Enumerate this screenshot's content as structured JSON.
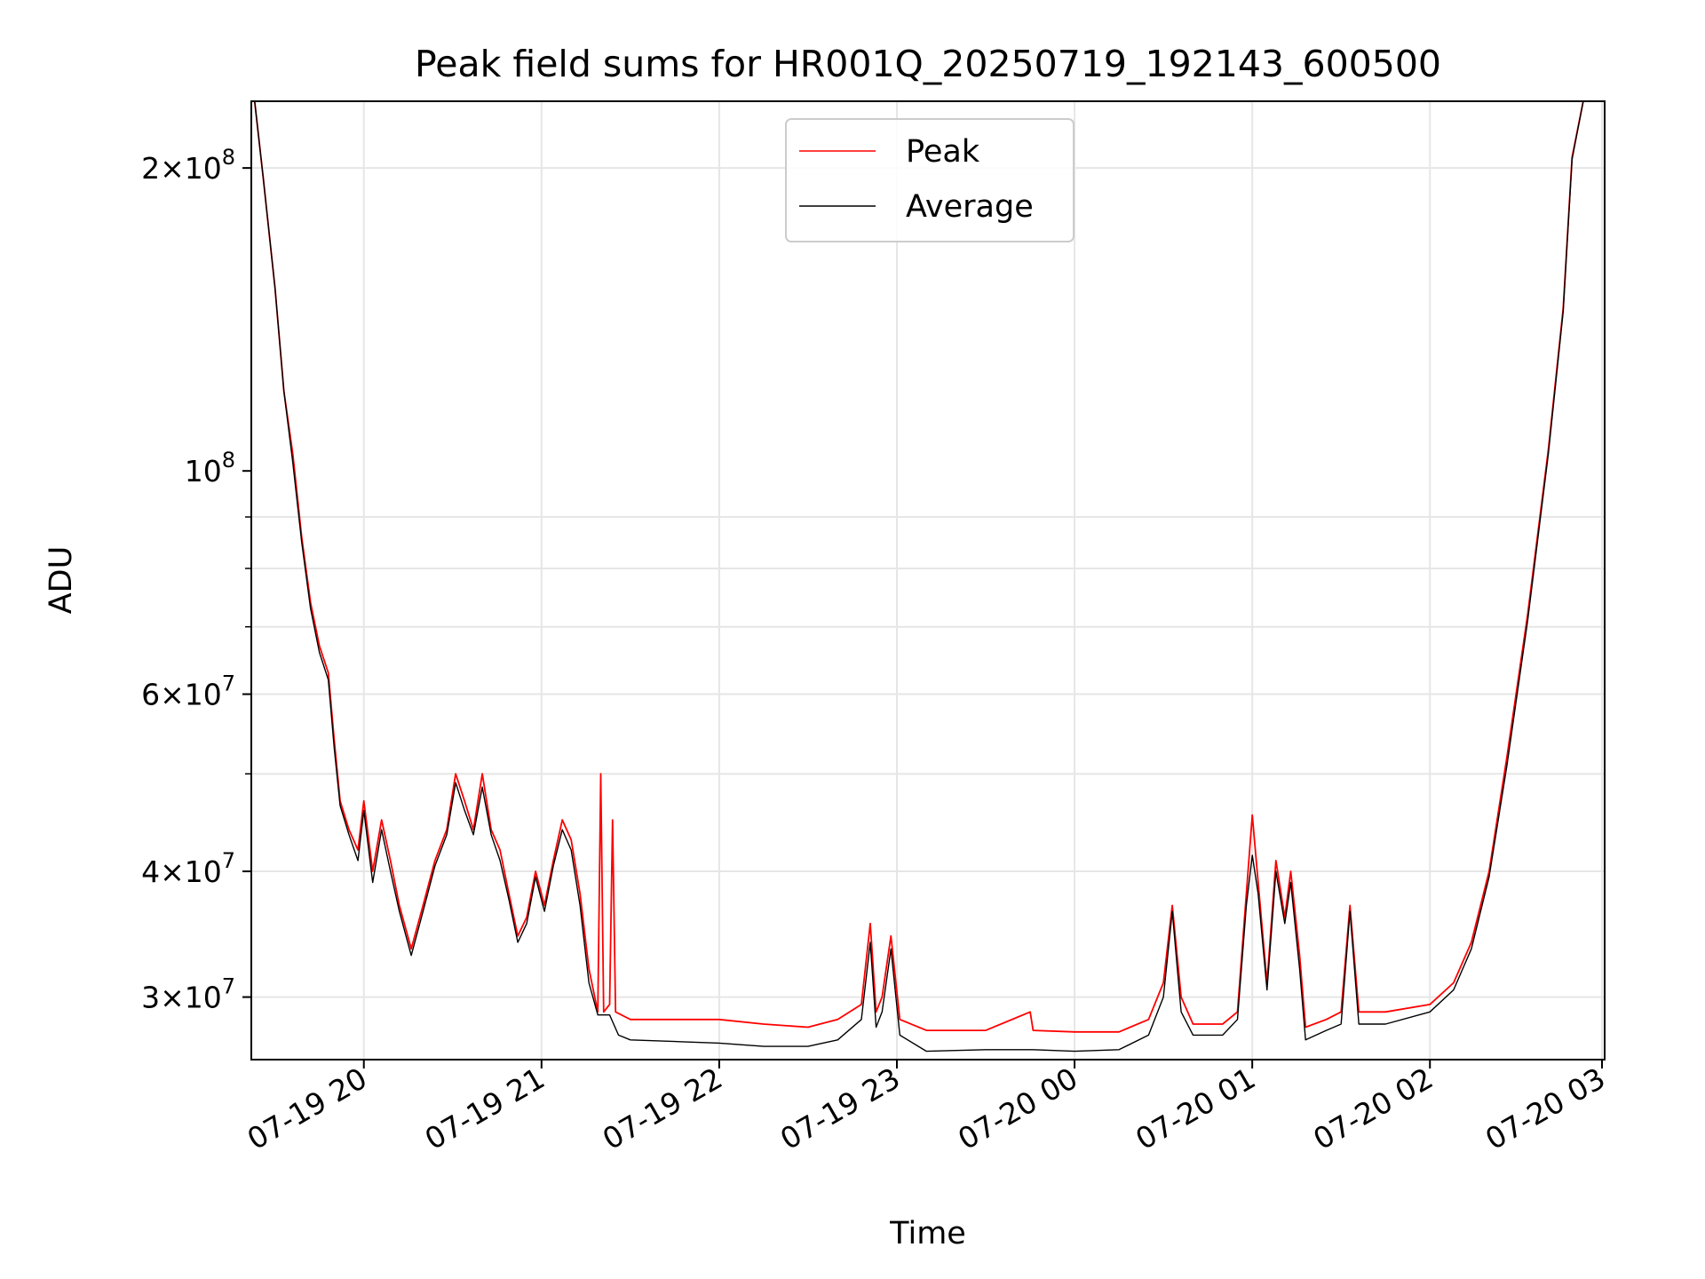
{
  "chart_data": {
    "type": "line",
    "title": "Peak field sums for HR001Q_20250719_192143_600500",
    "xlabel": "Time",
    "ylabel": "ADU",
    "y_scale": "log",
    "ylim": [
      26000000,
      233000000
    ],
    "xlim": [
      "2025-07-19 19:22",
      "2025-07-20 02:59"
    ],
    "grid": true,
    "legend_position": "upper center",
    "x_ticks": [
      "07-19 20",
      "07-19 21",
      "07-19 22",
      "07-19 23",
      "07-20 00",
      "07-20 01",
      "07-20 02",
      "07-20 03"
    ],
    "y_ticks": [
      {
        "value": 30000000,
        "base": "3",
        "exp": "7"
      },
      {
        "value": 40000000,
        "base": "4",
        "exp": "7"
      },
      {
        "value": 60000000,
        "base": "6",
        "exp": "7"
      },
      {
        "value": 100000000,
        "base": "",
        "exp": "8"
      },
      {
        "value": 200000000,
        "base": "2",
        "exp": "8"
      }
    ],
    "series": [
      {
        "name": "Peak",
        "color": "#ff0000",
        "points": [
          [
            "2025-07-19 19:23",
            235000000
          ],
          [
            "2025-07-19 19:26",
            196000000
          ],
          [
            "2025-07-19 19:30",
            152000000
          ],
          [
            "2025-07-19 19:33",
            120000000
          ],
          [
            "2025-07-19 19:36",
            104000000
          ],
          [
            "2025-07-19 19:39",
            86000000
          ],
          [
            "2025-07-19 19:42",
            74000000
          ],
          [
            "2025-07-19 19:45",
            67000000
          ],
          [
            "2025-07-19 19:48",
            63000000
          ],
          [
            "2025-07-19 19:50",
            54000000
          ],
          [
            "2025-07-19 19:52",
            47000000
          ],
          [
            "2025-07-19 19:55",
            44000000
          ],
          [
            "2025-07-19 19:58",
            42000000
          ],
          [
            "2025-07-19 20:00",
            47000000
          ],
          [
            "2025-07-19 20:03",
            40000000
          ],
          [
            "2025-07-19 20:06",
            45000000
          ],
          [
            "2025-07-19 20:09",
            41000000
          ],
          [
            "2025-07-19 20:12",
            37000000
          ],
          [
            "2025-07-19 20:16",
            33500000
          ],
          [
            "2025-07-19 20:20",
            37000000
          ],
          [
            "2025-07-19 20:24",
            41000000
          ],
          [
            "2025-07-19 20:28",
            44000000
          ],
          [
            "2025-07-19 20:31",
            50000000
          ],
          [
            "2025-07-19 20:34",
            47000000
          ],
          [
            "2025-07-19 20:37",
            44000000
          ],
          [
            "2025-07-19 20:40",
            50000000
          ],
          [
            "2025-07-19 20:43",
            44000000
          ],
          [
            "2025-07-19 20:46",
            42000000
          ],
          [
            "2025-07-19 20:49",
            38000000
          ],
          [
            "2025-07-19 20:52",
            34500000
          ],
          [
            "2025-07-19 20:55",
            36000000
          ],
          [
            "2025-07-19 20:58",
            40000000
          ],
          [
            "2025-07-19 21:01",
            37000000
          ],
          [
            "2025-07-19 21:04",
            41000000
          ],
          [
            "2025-07-19 21:07",
            45000000
          ],
          [
            "2025-07-19 21:10",
            43000000
          ],
          [
            "2025-07-19 21:13",
            38000000
          ],
          [
            "2025-07-19 21:16",
            32000000
          ],
          [
            "2025-07-19 21:19",
            29000000
          ],
          [
            "2025-07-19 21:20",
            50000000
          ],
          [
            "2025-07-19 21:21",
            29000000
          ],
          [
            "2025-07-19 21:23",
            29500000
          ],
          [
            "2025-07-19 21:24",
            45000000
          ],
          [
            "2025-07-19 21:25",
            29000000
          ],
          [
            "2025-07-19 21:30",
            28500000
          ],
          [
            "2025-07-19 21:45",
            28500000
          ],
          [
            "2025-07-19 22:00",
            28500000
          ],
          [
            "2025-07-19 22:15",
            28200000
          ],
          [
            "2025-07-19 22:30",
            28000000
          ],
          [
            "2025-07-19 22:40",
            28500000
          ],
          [
            "2025-07-19 22:48",
            29500000
          ],
          [
            "2025-07-19 22:51",
            35500000
          ],
          [
            "2025-07-19 22:53",
            29000000
          ],
          [
            "2025-07-19 22:55",
            30000000
          ],
          [
            "2025-07-19 22:58",
            34500000
          ],
          [
            "2025-07-19 23:01",
            28500000
          ],
          [
            "2025-07-19 23:10",
            27800000
          ],
          [
            "2025-07-19 23:30",
            27800000
          ],
          [
            "2025-07-19 23:45",
            29000000
          ],
          [
            "2025-07-19 23:46",
            27800000
          ],
          [
            "2025-07-20 00:00",
            27700000
          ],
          [
            "2025-07-20 00:15",
            27700000
          ],
          [
            "2025-07-20 00:25",
            28500000
          ],
          [
            "2025-07-20 00:30",
            31000000
          ],
          [
            "2025-07-20 00:33",
            37000000
          ],
          [
            "2025-07-20 00:36",
            30000000
          ],
          [
            "2025-07-20 00:40",
            28200000
          ],
          [
            "2025-07-20 00:50",
            28200000
          ],
          [
            "2025-07-20 00:55",
            29000000
          ],
          [
            "2025-07-20 00:58",
            38000000
          ],
          [
            "2025-07-20 01:00",
            45500000
          ],
          [
            "2025-07-20 01:02",
            39000000
          ],
          [
            "2025-07-20 01:05",
            31000000
          ],
          [
            "2025-07-20 01:08",
            41000000
          ],
          [
            "2025-07-20 01:11",
            36000000
          ],
          [
            "2025-07-20 01:13",
            40000000
          ],
          [
            "2025-07-20 01:16",
            33000000
          ],
          [
            "2025-07-20 01:18",
            28000000
          ],
          [
            "2025-07-20 01:25",
            28500000
          ],
          [
            "2025-07-20 01:30",
            29000000
          ],
          [
            "2025-07-20 01:33",
            37000000
          ],
          [
            "2025-07-20 01:36",
            29000000
          ],
          [
            "2025-07-20 01:45",
            29000000
          ],
          [
            "2025-07-20 02:00",
            29500000
          ],
          [
            "2025-07-20 02:08",
            31000000
          ],
          [
            "2025-07-20 02:14",
            34000000
          ],
          [
            "2025-07-20 02:20",
            40000000
          ],
          [
            "2025-07-20 02:26",
            52000000
          ],
          [
            "2025-07-20 02:33",
            72000000
          ],
          [
            "2025-07-20 02:40",
            105000000
          ],
          [
            "2025-07-20 02:45",
            145000000
          ],
          [
            "2025-07-20 02:48",
            205000000
          ],
          [
            "2025-07-20 02:52",
            235000000
          ]
        ]
      },
      {
        "name": "Average",
        "color": "#000000",
        "points": [
          [
            "2025-07-19 19:23",
            235000000
          ],
          [
            "2025-07-19 19:26",
            196000000
          ],
          [
            "2025-07-19 19:30",
            152000000
          ],
          [
            "2025-07-19 19:33",
            120000000
          ],
          [
            "2025-07-19 19:36",
            102000000
          ],
          [
            "2025-07-19 19:39",
            85000000
          ],
          [
            "2025-07-19 19:42",
            73000000
          ],
          [
            "2025-07-19 19:45",
            66000000
          ],
          [
            "2025-07-19 19:48",
            62000000
          ],
          [
            "2025-07-19 19:50",
            53000000
          ],
          [
            "2025-07-19 19:52",
            46500000
          ],
          [
            "2025-07-19 19:55",
            43500000
          ],
          [
            "2025-07-19 19:58",
            41000000
          ],
          [
            "2025-07-19 20:00",
            46000000
          ],
          [
            "2025-07-19 20:03",
            39000000
          ],
          [
            "2025-07-19 20:06",
            44000000
          ],
          [
            "2025-07-19 20:09",
            40000000
          ],
          [
            "2025-07-19 20:12",
            36500000
          ],
          [
            "2025-07-19 20:16",
            33000000
          ],
          [
            "2025-07-19 20:20",
            36500000
          ],
          [
            "2025-07-19 20:24",
            40500000
          ],
          [
            "2025-07-19 20:28",
            43500000
          ],
          [
            "2025-07-19 20:31",
            49000000
          ],
          [
            "2025-07-19 20:34",
            46000000
          ],
          [
            "2025-07-19 20:37",
            43500000
          ],
          [
            "2025-07-19 20:40",
            48500000
          ],
          [
            "2025-07-19 20:43",
            43500000
          ],
          [
            "2025-07-19 20:46",
            41000000
          ],
          [
            "2025-07-19 20:49",
            37500000
          ],
          [
            "2025-07-19 20:52",
            34000000
          ],
          [
            "2025-07-19 20:55",
            35500000
          ],
          [
            "2025-07-19 20:58",
            39500000
          ],
          [
            "2025-07-19 21:01",
            36500000
          ],
          [
            "2025-07-19 21:04",
            40500000
          ],
          [
            "2025-07-19 21:07",
            44000000
          ],
          [
            "2025-07-19 21:10",
            42000000
          ],
          [
            "2025-07-19 21:13",
            37000000
          ],
          [
            "2025-07-19 21:16",
            31000000
          ],
          [
            "2025-07-19 21:19",
            28800000
          ],
          [
            "2025-07-19 21:23",
            28800000
          ],
          [
            "2025-07-19 21:26",
            27500000
          ],
          [
            "2025-07-19 21:30",
            27200000
          ],
          [
            "2025-07-19 21:45",
            27100000
          ],
          [
            "2025-07-19 22:00",
            27000000
          ],
          [
            "2025-07-19 22:15",
            26800000
          ],
          [
            "2025-07-19 22:30",
            26800000
          ],
          [
            "2025-07-19 22:40",
            27200000
          ],
          [
            "2025-07-19 22:48",
            28500000
          ],
          [
            "2025-07-19 22:51",
            34000000
          ],
          [
            "2025-07-19 22:53",
            28000000
          ],
          [
            "2025-07-19 22:55",
            29000000
          ],
          [
            "2025-07-19 22:58",
            33500000
          ],
          [
            "2025-07-19 23:01",
            27500000
          ],
          [
            "2025-07-19 23:10",
            26500000
          ],
          [
            "2025-07-19 23:30",
            26600000
          ],
          [
            "2025-07-19 23:46",
            26600000
          ],
          [
            "2025-07-20 00:00",
            26500000
          ],
          [
            "2025-07-20 00:15",
            26600000
          ],
          [
            "2025-07-20 00:25",
            27500000
          ],
          [
            "2025-07-20 00:30",
            30000000
          ],
          [
            "2025-07-20 00:33",
            36500000
          ],
          [
            "2025-07-20 00:36",
            29000000
          ],
          [
            "2025-07-20 00:40",
            27500000
          ],
          [
            "2025-07-20 00:50",
            27500000
          ],
          [
            "2025-07-20 00:55",
            28500000
          ],
          [
            "2025-07-20 00:58",
            37000000
          ],
          [
            "2025-07-20 01:00",
            41500000
          ],
          [
            "2025-07-20 01:02",
            38000000
          ],
          [
            "2025-07-20 01:05",
            30500000
          ],
          [
            "2025-07-20 01:08",
            40000000
          ],
          [
            "2025-07-20 01:11",
            35500000
          ],
          [
            "2025-07-20 01:13",
            39000000
          ],
          [
            "2025-07-20 01:16",
            32000000
          ],
          [
            "2025-07-20 01:18",
            27200000
          ],
          [
            "2025-07-20 01:25",
            27800000
          ],
          [
            "2025-07-20 01:30",
            28200000
          ],
          [
            "2025-07-20 01:33",
            36500000
          ],
          [
            "2025-07-20 01:36",
            28200000
          ],
          [
            "2025-07-20 01:45",
            28200000
          ],
          [
            "2025-07-20 02:00",
            29000000
          ],
          [
            "2025-07-20 02:08",
            30500000
          ],
          [
            "2025-07-20 02:14",
            33500000
          ],
          [
            "2025-07-20 02:20",
            39500000
          ],
          [
            "2025-07-20 02:26",
            51000000
          ],
          [
            "2025-07-20 02:33",
            71000000
          ],
          [
            "2025-07-20 02:40",
            104000000
          ],
          [
            "2025-07-20 02:45",
            144000000
          ],
          [
            "2025-07-20 02:48",
            204000000
          ],
          [
            "2025-07-20 02:52",
            235000000
          ]
        ]
      }
    ]
  }
}
